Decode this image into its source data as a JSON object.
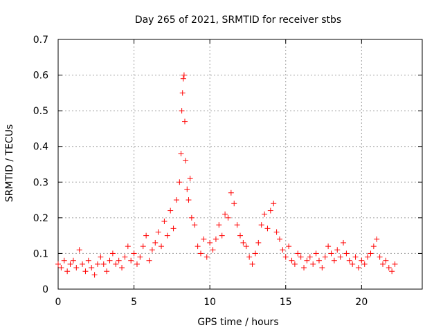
{
  "chart_data": {
    "type": "scatter",
    "title": "Day 265 of 2021, SRMTID for receiver stbs",
    "xlabel": "GPS time / hours",
    "ylabel": "SRMTID / TECUs",
    "xlim": [
      0,
      24
    ],
    "ylim": [
      0,
      0.7
    ],
    "xticks": [
      0,
      5,
      10,
      15,
      20
    ],
    "yticks": [
      0,
      0.1,
      0.2,
      0.3,
      0.4,
      0.5,
      0.6,
      0.7
    ],
    "xtick_labels": [
      "0",
      "5",
      "10",
      "15",
      "20"
    ],
    "ytick_labels": [
      "0",
      "0.1",
      "0.2",
      "0.3",
      "0.4",
      "0.5",
      "0.6",
      "0.7"
    ],
    "grid": true,
    "marker": "+",
    "color": "#ff0000",
    "series": [
      {
        "name": "SRMTID",
        "points": [
          [
            0.0,
            0.07
          ],
          [
            0.2,
            0.06
          ],
          [
            0.4,
            0.08
          ],
          [
            0.6,
            0.05
          ],
          [
            0.8,
            0.07
          ],
          [
            1.0,
            0.08
          ],
          [
            1.2,
            0.06
          ],
          [
            1.4,
            0.11
          ],
          [
            1.6,
            0.07
          ],
          [
            1.8,
            0.05
          ],
          [
            2.0,
            0.08
          ],
          [
            2.2,
            0.06
          ],
          [
            2.4,
            0.04
          ],
          [
            2.6,
            0.07
          ],
          [
            2.8,
            0.09
          ],
          [
            3.0,
            0.07
          ],
          [
            3.2,
            0.05
          ],
          [
            3.4,
            0.08
          ],
          [
            3.6,
            0.1
          ],
          [
            3.8,
            0.07
          ],
          [
            4.0,
            0.08
          ],
          [
            4.2,
            0.06
          ],
          [
            4.4,
            0.09
          ],
          [
            4.6,
            0.12
          ],
          [
            4.8,
            0.08
          ],
          [
            5.0,
            0.1
          ],
          [
            5.2,
            0.07
          ],
          [
            5.4,
            0.09
          ],
          [
            5.6,
            0.12
          ],
          [
            5.8,
            0.15
          ],
          [
            6.0,
            0.08
          ],
          [
            6.2,
            0.11
          ],
          [
            6.4,
            0.13
          ],
          [
            6.6,
            0.16
          ],
          [
            6.8,
            0.12
          ],
          [
            7.0,
            0.19
          ],
          [
            7.2,
            0.15
          ],
          [
            7.4,
            0.22
          ],
          [
            7.6,
            0.17
          ],
          [
            7.8,
            0.25
          ],
          [
            8.0,
            0.3
          ],
          [
            8.1,
            0.38
          ],
          [
            8.15,
            0.5
          ],
          [
            8.2,
            0.55
          ],
          [
            8.25,
            0.59
          ],
          [
            8.3,
            0.6
          ],
          [
            8.35,
            0.47
          ],
          [
            8.4,
            0.36
          ],
          [
            8.5,
            0.28
          ],
          [
            8.6,
            0.25
          ],
          [
            8.7,
            0.31
          ],
          [
            8.8,
            0.2
          ],
          [
            9.0,
            0.18
          ],
          [
            9.2,
            0.12
          ],
          [
            9.4,
            0.1
          ],
          [
            9.6,
            0.14
          ],
          [
            9.8,
            0.09
          ],
          [
            10.0,
            0.13
          ],
          [
            10.2,
            0.11
          ],
          [
            10.4,
            0.14
          ],
          [
            10.6,
            0.18
          ],
          [
            10.8,
            0.15
          ],
          [
            11.0,
            0.21
          ],
          [
            11.2,
            0.2
          ],
          [
            11.4,
            0.27
          ],
          [
            11.6,
            0.24
          ],
          [
            11.8,
            0.18
          ],
          [
            12.0,
            0.15
          ],
          [
            12.2,
            0.13
          ],
          [
            12.4,
            0.12
          ],
          [
            12.6,
            0.09
          ],
          [
            12.8,
            0.07
          ],
          [
            13.0,
            0.1
          ],
          [
            13.2,
            0.13
          ],
          [
            13.4,
            0.18
          ],
          [
            13.6,
            0.21
          ],
          [
            13.8,
            0.17
          ],
          [
            14.0,
            0.22
          ],
          [
            14.2,
            0.24
          ],
          [
            14.4,
            0.16
          ],
          [
            14.6,
            0.14
          ],
          [
            14.8,
            0.11
          ],
          [
            15.0,
            0.09
          ],
          [
            15.2,
            0.12
          ],
          [
            15.4,
            0.08
          ],
          [
            15.6,
            0.07
          ],
          [
            15.8,
            0.1
          ],
          [
            16.0,
            0.09
          ],
          [
            16.2,
            0.06
          ],
          [
            16.4,
            0.08
          ],
          [
            16.6,
            0.09
          ],
          [
            16.8,
            0.07
          ],
          [
            17.0,
            0.1
          ],
          [
            17.2,
            0.08
          ],
          [
            17.4,
            0.06
          ],
          [
            17.6,
            0.09
          ],
          [
            17.8,
            0.12
          ],
          [
            18.0,
            0.1
          ],
          [
            18.2,
            0.08
          ],
          [
            18.4,
            0.11
          ],
          [
            18.6,
            0.09
          ],
          [
            18.8,
            0.13
          ],
          [
            19.0,
            0.1
          ],
          [
            19.2,
            0.08
          ],
          [
            19.4,
            0.07
          ],
          [
            19.6,
            0.09
          ],
          [
            19.8,
            0.06
          ],
          [
            20.0,
            0.08
          ],
          [
            20.2,
            0.07
          ],
          [
            20.4,
            0.09
          ],
          [
            20.6,
            0.1
          ],
          [
            20.8,
            0.12
          ],
          [
            21.0,
            0.14
          ],
          [
            21.2,
            0.09
          ],
          [
            21.4,
            0.07
          ],
          [
            21.6,
            0.08
          ],
          [
            21.8,
            0.06
          ],
          [
            22.0,
            0.05
          ],
          [
            22.2,
            0.07
          ]
        ]
      }
    ]
  }
}
